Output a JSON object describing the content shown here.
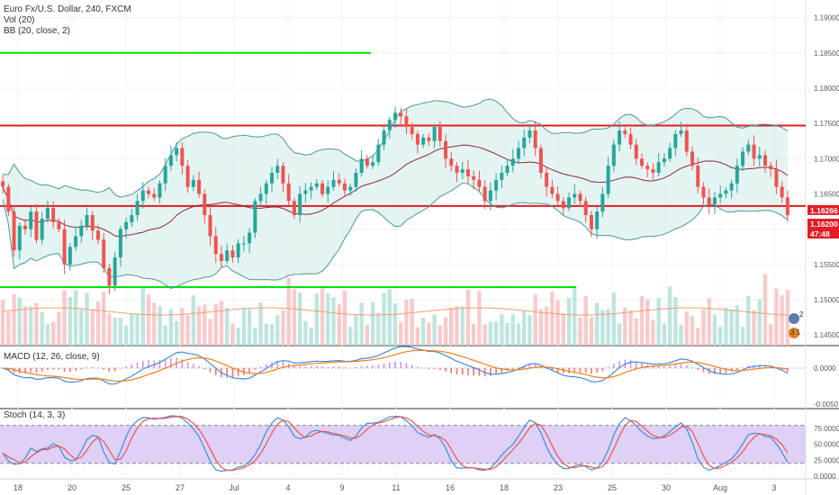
{
  "header": {
    "title": "Euro Fx/U.S. Dollar, 240, FXCM",
    "studies": [
      "Vol (20)",
      "BB (20, close, 2)"
    ]
  },
  "panels": {
    "macd_label": "MACD (12, 26, close, 9)",
    "stoch_label": "Stoch (14, 3, 3)"
  },
  "price_badges": {
    "bid": "1.16266",
    "current": "1.16200",
    "countdown": "47:48"
  },
  "markers": {
    "earnings_count": "2",
    "events_count": "3 1"
  },
  "colors": {
    "up": "#26a69a",
    "down": "#ef5350",
    "red_line": "#e31b23",
    "green_line": "#00e600",
    "bb_fill": "#d8f0ee",
    "bb_band": "#4a9a96",
    "basis": "#8b2a3a",
    "macd": "#3e8de0",
    "signal": "#f57f17",
    "stoch_k": "#3e8de0",
    "stoch_d": "#ef5350",
    "stoch_bg": "#d9c8f5"
  },
  "chart_data": {
    "type": "candlestick",
    "symbol": "EURUSD",
    "timeframe": "240",
    "x_tick_labels": [
      "18",
      "20",
      "25",
      "27",
      "Jul",
      "4",
      "9",
      "11",
      "16",
      "18",
      "23",
      "25",
      "30",
      "Aug",
      "3"
    ],
    "price_axis": {
      "ticks": [
        "1.19000",
        "1.18500",
        "1.18000",
        "1.17500",
        "1.17000",
        "1.16500",
        "1.16000",
        "1.15500",
        "1.15000",
        "1.14500"
      ],
      "range": [
        1.1435,
        1.1925
      ]
    },
    "macd_axis": {
      "ticks": [
        "0.0000",
        "-0.0050"
      ],
      "range": [
        -0.0055,
        0.003
      ]
    },
    "stoch_axis": {
      "ticks": [
        "75.0000",
        "50.0000",
        "25.0000",
        "0.0000"
      ],
      "range": [
        -3,
        105
      ],
      "bands": [
        20,
        80
      ]
    },
    "horizontal_lines": [
      {
        "name": "resistance",
        "price": 1.1747,
        "color": "#e31b23"
      },
      {
        "name": "support",
        "price": 1.1633,
        "color": "#e31b23"
      },
      {
        "name": "upper_green",
        "price": 1.185,
        "color": "#00e600",
        "extent": "left-half"
      },
      {
        "name": "lower_green",
        "price": 1.1518,
        "color": "#00e600",
        "extent": "left-two-thirds"
      }
    ],
    "close_path": [
      1.166,
      1.1625,
      1.157,
      1.1605,
      1.16,
      1.1625,
      1.1585,
      1.1615,
      1.163,
      1.161,
      1.16,
      1.155,
      1.1575,
      1.159,
      1.1605,
      1.162,
      1.1598,
      1.1585,
      1.1545,
      1.152,
      1.156,
      1.16,
      1.161,
      1.162,
      1.164,
      1.1655,
      1.165,
      1.1645,
      1.1665,
      1.169,
      1.1705,
      1.1715,
      1.169,
      1.166,
      1.167,
      1.165,
      1.162,
      1.159,
      1.1565,
      1.1555,
      1.157,
      1.156,
      1.158,
      1.158,
      1.1595,
      1.164,
      1.165,
      1.1665,
      1.168,
      1.169,
      1.1665,
      1.164,
      1.162,
      1.165,
      1.1655,
      1.166,
      1.1665,
      1.165,
      1.166,
      1.167,
      1.1665,
      1.1655,
      1.166,
      1.168,
      1.17,
      1.169,
      1.1695,
      1.172,
      1.174,
      1.1755,
      1.1765,
      1.176,
      1.1745,
      1.1735,
      1.172,
      1.173,
      1.1725,
      1.1745,
      1.1725,
      1.17,
      1.169,
      1.168,
      1.1685,
      1.1675,
      1.167,
      1.166,
      1.164,
      1.1655,
      1.167,
      1.168,
      1.169,
      1.17,
      1.1715,
      1.173,
      1.174,
      1.1715,
      1.168,
      1.166,
      1.165,
      1.164,
      1.163,
      1.1645,
      1.165,
      1.164,
      1.162,
      1.16,
      1.1625,
      1.165,
      1.169,
      1.172,
      1.174,
      1.1735,
      1.172,
      1.17,
      1.169,
      1.1685,
      1.168,
      1.1695,
      1.17,
      1.1715,
      1.1735,
      1.174,
      1.171,
      1.169,
      1.166,
      1.1645,
      1.1635,
      1.1645,
      1.165,
      1.1655,
      1.1665,
      1.169,
      1.171,
      1.172,
      1.17,
      1.1705,
      1.169,
      1.1685,
      1.166,
      1.1645,
      1.162
    ]
  }
}
